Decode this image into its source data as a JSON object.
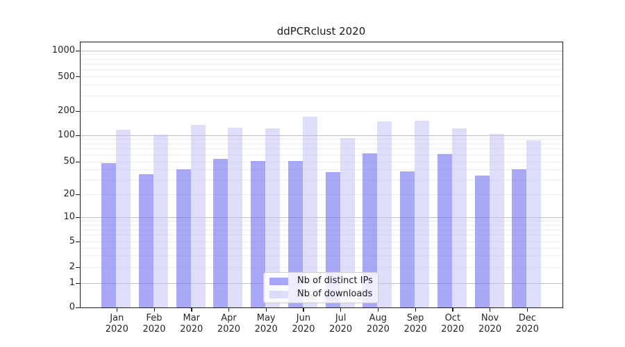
{
  "chart_data": {
    "type": "bar",
    "title": "ddPCRclust 2020",
    "categories": [
      "Jan\n2020",
      "Feb\n2020",
      "Mar\n2020",
      "Apr\n2020",
      "May\n2020",
      "Jun\n2020",
      "Jul\n2020",
      "Aug\n2020",
      "Sep\n2020",
      "Oct\n2020",
      "Nov\n2020",
      "Dec\n2020"
    ],
    "series": [
      {
        "name": "Nb of distinct IPs",
        "color": "rgba(115,115,240,0.62)",
        "values": [
          48,
          35,
          40,
          54,
          51,
          51,
          37,
          62,
          38,
          61,
          34,
          40
        ]
      },
      {
        "name": "Nb of downloads",
        "color": "rgba(195,195,245,0.55)",
        "values": [
          118,
          101,
          134,
          125,
          122,
          170,
          93,
          148,
          152,
          122,
          104,
          88
        ]
      }
    ],
    "y_axis": {
      "ticks": [
        0,
        1,
        2,
        5,
        10,
        20,
        50,
        100,
        200,
        500,
        1000
      ],
      "scale": "log-like (1-2-5 ticks, linear below 1)",
      "range": [
        0,
        1300
      ]
    },
    "xlabel": "",
    "ylabel": "",
    "grid": "horizontal, minor light + major at powers of 10",
    "legend_position": "lower center inside plot"
  },
  "colors": {
    "background": "#ffffff",
    "bar_distinct_ips": "#a8a8f0",
    "bar_downloads": "#dbdbf8",
    "grid_minor": "#ececec",
    "grid_major": "#bdbdbd",
    "axis": "#1a1a1a",
    "legend_border": "#cccccc"
  }
}
